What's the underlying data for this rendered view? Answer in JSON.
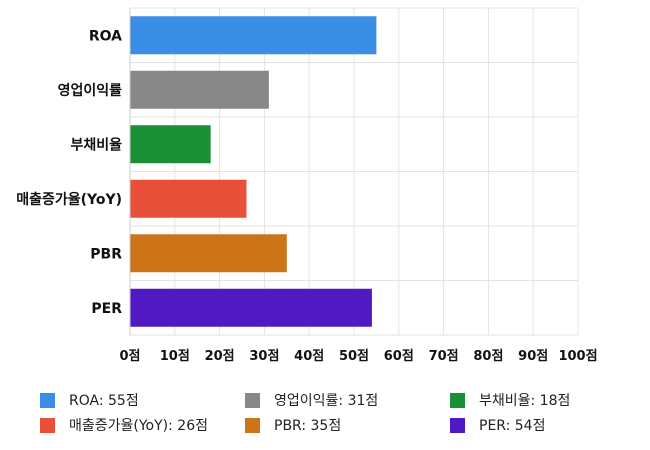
{
  "chart_data": {
    "type": "bar",
    "orientation": "horizontal",
    "categories": [
      "ROA",
      "영업이익률",
      "부채비율",
      "매출증가율(YoY)",
      "PBR",
      "PER"
    ],
    "values": [
      55,
      31,
      18,
      26,
      35,
      54
    ],
    "colors": [
      "#3a8ee6",
      "#888888",
      "#1a8f36",
      "#e8503a",
      "#cc7418",
      "#5019c2"
    ],
    "xlim": [
      0,
      100
    ],
    "xticks": [
      "0점",
      "10점",
      "20점",
      "30점",
      "40점",
      "50점",
      "60점",
      "70점",
      "80점",
      "90점",
      "100점"
    ],
    "grid": true,
    "legend_position": "bottom",
    "legend": [
      "ROA: 55점",
      "영업이익률: 31점",
      "부채비율: 18점",
      "매출증가율(YoY): 26점",
      "PBR: 35점",
      "PER: 54점"
    ]
  }
}
